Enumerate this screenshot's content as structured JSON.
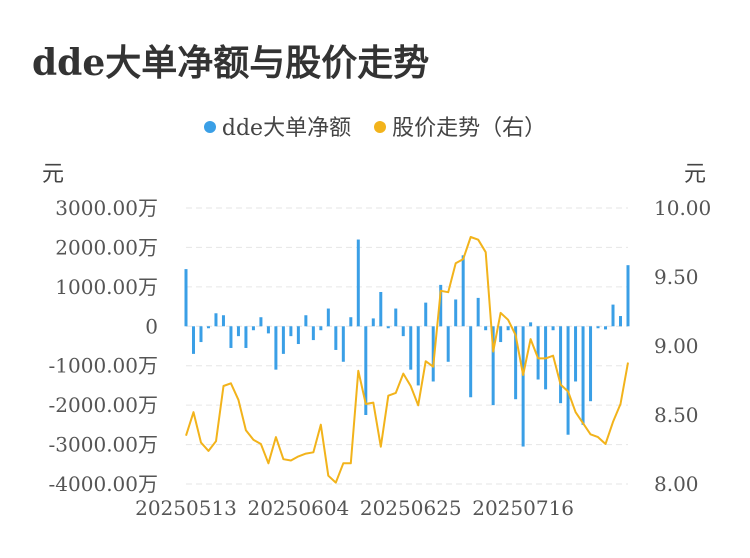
{
  "title": "dde大单净额与股价走势",
  "legend": {
    "left": "dde大单净额",
    "right": "股价走势（右）"
  },
  "colors": {
    "bar": "#3a9fe6",
    "line": "#f2b31b",
    "grid": "#e6e6e6"
  },
  "chart_data": {
    "type": "bar+line",
    "title": "dde大单净额与股价走势",
    "left_axis": {
      "unit": "元",
      "ticks": [
        "3000.00万",
        "2000.00万",
        "1000.00万",
        "0",
        "-1000.00万",
        "-2000.00万",
        "-3000.00万",
        "-4000.00万"
      ],
      "ylim": [
        -4000,
        3000
      ]
    },
    "right_axis": {
      "unit": "元",
      "ticks": [
        "10.00",
        "9.50",
        "9.00",
        "8.50",
        "8.00"
      ],
      "ylim": [
        8.0,
        10.0
      ]
    },
    "x_tick_labels": [
      {
        "label": "20250513",
        "index": 0
      },
      {
        "label": "20250604",
        "index": 15
      },
      {
        "label": "20250625",
        "index": 30
      },
      {
        "label": "20250716",
        "index": 45
      }
    ],
    "series": [
      {
        "name": "dde大单净额",
        "type": "bar",
        "axis": "left",
        "unit": "万元",
        "values": [
          1450,
          -700,
          -400,
          -50,
          330,
          280,
          -550,
          -250,
          -550,
          -100,
          230,
          -180,
          -1100,
          -700,
          -250,
          -450,
          280,
          -350,
          -100,
          450,
          -600,
          -900,
          230,
          2200,
          -2250,
          200,
          870,
          -50,
          450,
          -250,
          -1100,
          -1500,
          600,
          -1400,
          1050,
          -900,
          680,
          1800,
          -1800,
          720,
          -100,
          -2000,
          -400,
          -100,
          -1850,
          -3050,
          100,
          -1350,
          -1600,
          -100,
          -1950,
          -2750,
          -1400,
          -2500,
          -1900,
          -50,
          -80,
          550,
          260,
          1550
        ]
      },
      {
        "name": "股价走势（右）",
        "type": "line",
        "axis": "right",
        "values": [
          8.35,
          8.52,
          8.3,
          8.24,
          8.31,
          8.71,
          8.73,
          8.61,
          8.39,
          8.32,
          8.29,
          8.15,
          8.34,
          8.18,
          8.17,
          8.2,
          8.22,
          8.23,
          8.43,
          8.06,
          8.01,
          8.15,
          8.15,
          8.82,
          8.58,
          8.59,
          8.27,
          8.64,
          8.66,
          8.8,
          8.71,
          8.57,
          8.89,
          8.85,
          9.4,
          9.39,
          9.6,
          9.63,
          9.79,
          9.77,
          9.68,
          8.96,
          9.24,
          9.19,
          9.08,
          8.79,
          9.05,
          8.91,
          8.91,
          8.93,
          8.72,
          8.67,
          8.52,
          8.44,
          8.36,
          8.34,
          8.29,
          8.45,
          8.58,
          8.88
        ]
      }
    ]
  }
}
